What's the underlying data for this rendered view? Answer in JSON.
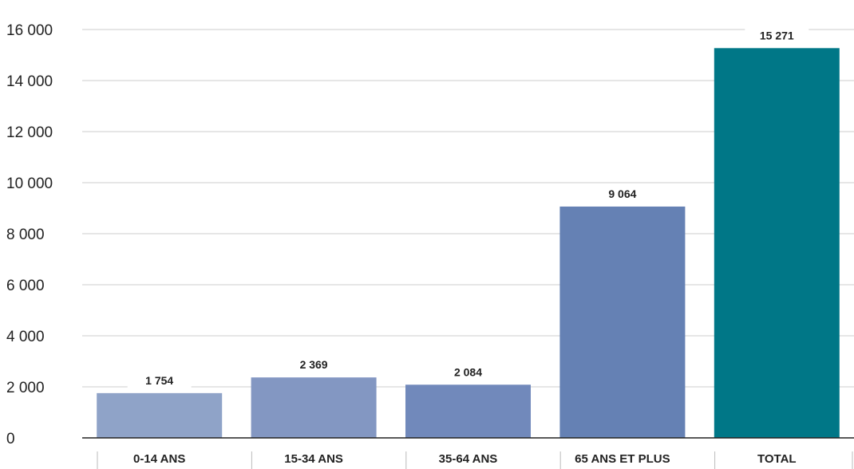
{
  "chart_data": {
    "type": "bar",
    "categories": [
      "0-14 ANS",
      "15-34 ANS",
      "35-64 ANS",
      "65 ANS ET PLUS",
      "TOTAL"
    ],
    "values": [
      1754,
      2369,
      2084,
      9064,
      15271
    ],
    "value_labels": [
      "1 754",
      "2 369",
      "2 084",
      "9 064",
      "15 271"
    ],
    "ylim": [
      0,
      16000
    ],
    "yticks": [
      0,
      2000,
      4000,
      6000,
      8000,
      10000,
      12000,
      14000,
      16000
    ],
    "ytick_labels": [
      "0",
      "2 000",
      "4 000",
      "6 000",
      "8 000",
      "10 000",
      "12 000",
      "14 000",
      "16 000"
    ],
    "bar_colors": [
      "#8fa3c8",
      "#8397c2",
      "#7189bb",
      "#6581b4",
      "#007787"
    ],
    "grid": true,
    "legend": "none",
    "title": "",
    "xlabel": "",
    "ylabel": ""
  }
}
